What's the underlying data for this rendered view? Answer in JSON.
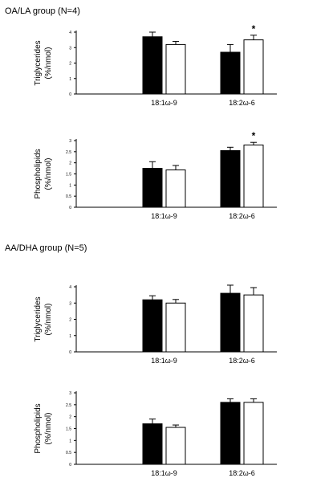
{
  "groups": [
    {
      "title": "OA/LA group (N=4)"
    },
    {
      "title": "AA/DHA group (N=5)"
    }
  ],
  "chart_data": [
    {
      "type": "bar",
      "group": "OA/LA group (N=4)",
      "ylabel": "Triglycerides",
      "yunit": "(%/nmol)",
      "categories": [
        "18:1ω-9",
        "18:2ω-6"
      ],
      "ylim": [
        0,
        4
      ],
      "yticks": [
        "0",
        "1",
        "2",
        "3",
        "4"
      ],
      "series": [
        {
          "fill": "#000000",
          "values": [
            3.7,
            2.7
          ],
          "errors": [
            0.3,
            0.5
          ]
        },
        {
          "fill": "#ffffff",
          "values": [
            3.2,
            3.5
          ],
          "errors": [
            0.2,
            0.3
          ]
        }
      ],
      "annotations": [
        {
          "category_index": 1,
          "series_index": 1,
          "text": "*"
        }
      ]
    },
    {
      "type": "bar",
      "group": "OA/LA group (N=4)",
      "ylabel": "Phospholipids",
      "yunit": "(%/nmol)",
      "categories": [
        "18:1ω-9",
        "18:2ω-6"
      ],
      "ylim": [
        0,
        3
      ],
      "yticks": [
        "0",
        "0.5",
        "1",
        "1.5",
        "2",
        "2.5",
        "3"
      ],
      "series": [
        {
          "fill": "#000000",
          "values": [
            1.75,
            2.55
          ],
          "errors": [
            0.3,
            0.15
          ]
        },
        {
          "fill": "#ffffff",
          "values": [
            1.68,
            2.8
          ],
          "errors": [
            0.2,
            0.12
          ]
        }
      ],
      "annotations": [
        {
          "category_index": 1,
          "series_index": 1,
          "text": "*"
        }
      ]
    },
    {
      "type": "bar",
      "group": "AA/DHA group (N=5)",
      "ylabel": "Triglycerides",
      "yunit": "(%/nmol)",
      "categories": [
        "18:1ω-9",
        "18:2ω-6"
      ],
      "ylim": [
        0,
        4
      ],
      "yticks": [
        "0",
        "1",
        "2",
        "3",
        "4"
      ],
      "series": [
        {
          "fill": "#000000",
          "values": [
            3.2,
            3.6
          ],
          "errors": [
            0.25,
            0.5
          ]
        },
        {
          "fill": "#ffffff",
          "values": [
            3.0,
            3.5
          ],
          "errors": [
            0.22,
            0.45
          ]
        }
      ],
      "annotations": []
    },
    {
      "type": "bar",
      "group": "AA/DHA group (N=5)",
      "ylabel": "Phospholipids",
      "yunit": "(%/nmol)",
      "categories": [
        "18:1ω-9",
        "18:2ω-6"
      ],
      "ylim": [
        0,
        3
      ],
      "yticks": [
        "0",
        "0.5",
        "1",
        "1.5",
        "2",
        "2.5",
        "3"
      ],
      "series": [
        {
          "fill": "#000000",
          "values": [
            1.7,
            2.6
          ],
          "errors": [
            0.2,
            0.15
          ]
        },
        {
          "fill": "#ffffff",
          "values": [
            1.55,
            2.6
          ],
          "errors": [
            0.1,
            0.15
          ]
        }
      ],
      "annotations": []
    }
  ]
}
